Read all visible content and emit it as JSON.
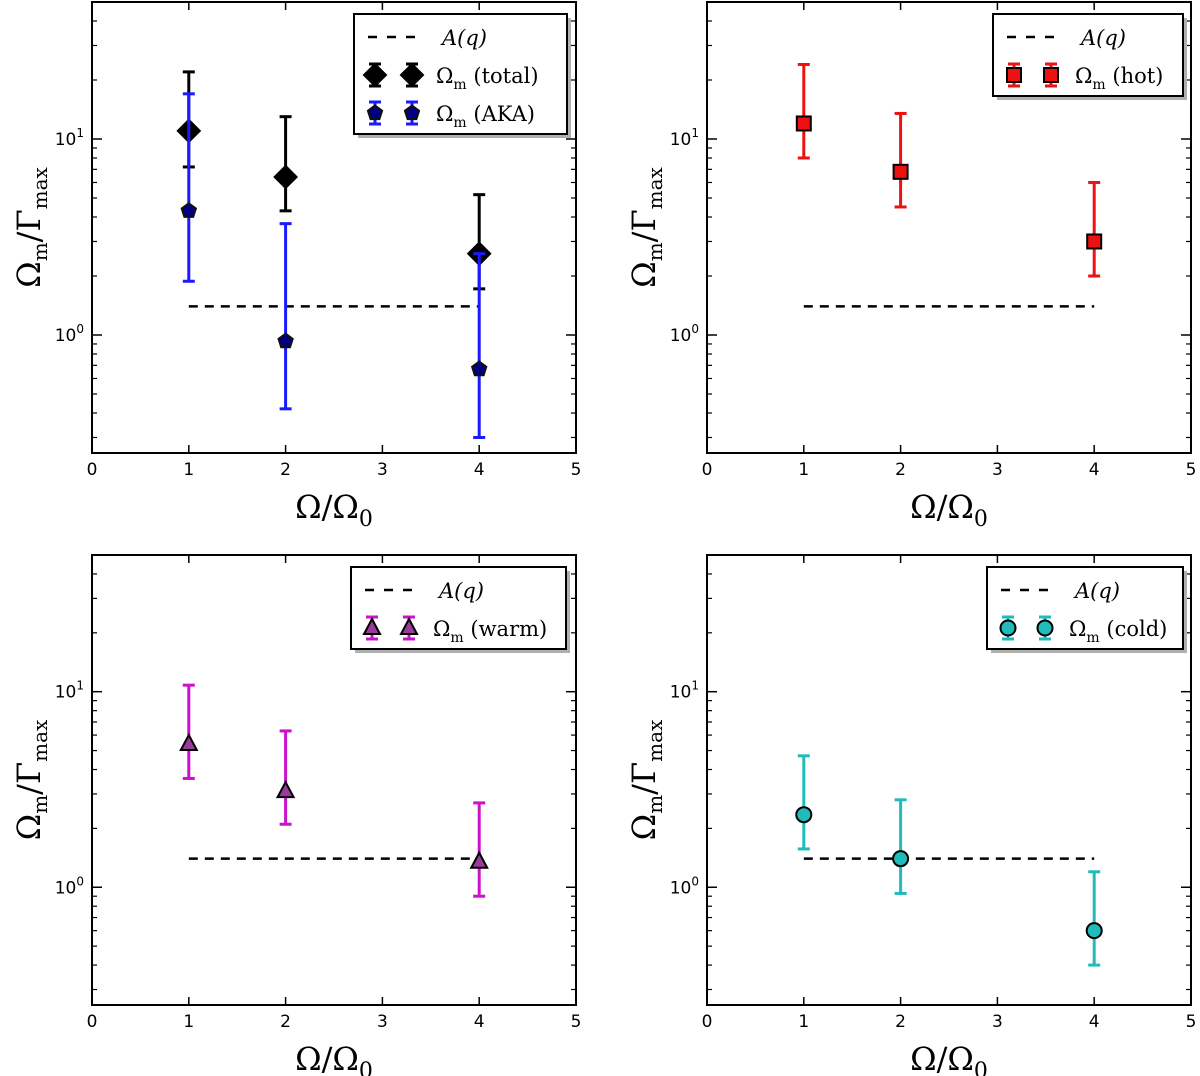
{
  "chart_data": [
    {
      "type": "scatter",
      "panel": "top-left",
      "xlabel": "Ω/Ω0",
      "ylabel": "Ωm/Γmax",
      "xlim": [
        0,
        5
      ],
      "ylim": [
        0.25,
        50
      ],
      "yscale": "log",
      "xticks": [
        "0",
        "1",
        "2",
        "3",
        "4",
        "5"
      ],
      "yticks": [
        {
          "value": 1,
          "label": "10^0"
        },
        {
          "value": 10,
          "label": "10^1"
        }
      ],
      "legend_position": "top-right",
      "reference_line": {
        "name": "A(q)",
        "y": 1.4,
        "x_range": [
          1,
          4
        ]
      },
      "series": [
        {
          "name": "Ωm (total)",
          "label_base": "Ω",
          "label_sub": "m",
          "label_rest": " (total)",
          "marker": "diamond",
          "color": "#000000",
          "face": "#000000",
          "x": [
            1,
            2,
            4
          ],
          "y": [
            11,
            6.4,
            2.6
          ],
          "err_low": [
            7.2,
            4.3,
            1.72
          ],
          "err_high": [
            22,
            13,
            5.2
          ]
        },
        {
          "name": "Ωm (AKA)",
          "label_base": "Ω",
          "label_sub": "m",
          "label_rest": " (AKA)",
          "marker": "pentagon",
          "color": "#1a1aff",
          "face": "#000080",
          "x": [
            1,
            2,
            4
          ],
          "y": [
            4.3,
            0.93,
            0.67
          ],
          "err_low": [
            1.88,
            0.42,
            0.3
          ],
          "err_high": [
            17,
            3.7,
            2.6
          ]
        }
      ]
    },
    {
      "type": "scatter",
      "panel": "top-right",
      "xlabel": "Ω/Ω0",
      "ylabel": "Ωm/Γmax",
      "xlim": [
        0,
        5
      ],
      "ylim": [
        0.25,
        50
      ],
      "yscale": "log",
      "xticks": [
        "0",
        "1",
        "2",
        "3",
        "4",
        "5"
      ],
      "yticks": [
        {
          "value": 1,
          "label": "10^0"
        },
        {
          "value": 10,
          "label": "10^1"
        }
      ],
      "legend_position": "top-right",
      "reference_line": {
        "name": "A(q)",
        "y": 1.4,
        "x_range": [
          1,
          4
        ]
      },
      "series": [
        {
          "name": "Ωm (hot)",
          "label_base": "Ω",
          "label_sub": "m",
          "label_rest": " (hot)",
          "marker": "square",
          "color": "#ee1111",
          "face": "#ee1111",
          "x": [
            1,
            2,
            4
          ],
          "y": [
            12,
            6.8,
            3.0
          ],
          "err_low": [
            8,
            4.5,
            2.0
          ],
          "err_high": [
            24,
            13.5,
            6
          ]
        }
      ]
    },
    {
      "type": "scatter",
      "panel": "bottom-left",
      "xlabel": "Ω/Ω0",
      "ylabel": "Ωm/Γmax",
      "xlim": [
        0,
        5
      ],
      "ylim": [
        0.25,
        50
      ],
      "yscale": "log",
      "xticks": [
        "0",
        "1",
        "2",
        "3",
        "4",
        "5"
      ],
      "yticks": [
        {
          "value": 1,
          "label": "10^0"
        },
        {
          "value": 10,
          "label": "10^1"
        }
      ],
      "legend_position": "top-right",
      "reference_line": {
        "name": "A(q)",
        "y": 1.4,
        "x_range": [
          1,
          4
        ]
      },
      "series": [
        {
          "name": "Ωm (warm)",
          "label_base": "Ω",
          "label_sub": "m",
          "label_rest": " (warm)",
          "marker": "triangle",
          "color": "#cc11cc",
          "face": "#9a3a9a",
          "x": [
            1,
            2,
            4
          ],
          "y": [
            5.4,
            3.1,
            1.35
          ],
          "err_low": [
            3.6,
            2.1,
            0.9
          ],
          "err_high": [
            10.8,
            6.3,
            2.7
          ]
        }
      ]
    },
    {
      "type": "scatter",
      "panel": "bottom-right",
      "xlabel": "Ω/Ω0",
      "ylabel": "Ωm/Γmax",
      "xlim": [
        0,
        5
      ],
      "ylim": [
        0.25,
        50
      ],
      "yscale": "log",
      "xticks": [
        "0",
        "1",
        "2",
        "3",
        "4",
        "5"
      ],
      "yticks": [
        {
          "value": 1,
          "label": "10^0"
        },
        {
          "value": 10,
          "label": "10^1"
        }
      ],
      "legend_position": "top-right",
      "reference_line": {
        "name": "A(q)",
        "y": 1.4,
        "x_range": [
          1,
          4
        ]
      },
      "series": [
        {
          "name": "Ωm (cold)",
          "label_base": "Ω",
          "label_sub": "m",
          "label_rest": " (cold)",
          "marker": "circle",
          "color": "#22bbbb",
          "face": "#22bbbb",
          "x": [
            1,
            2,
            4
          ],
          "y": [
            2.35,
            1.4,
            0.6
          ],
          "err_low": [
            1.57,
            0.93,
            0.4
          ],
          "err_high": [
            4.7,
            2.8,
            1.2
          ]
        }
      ]
    }
  ]
}
